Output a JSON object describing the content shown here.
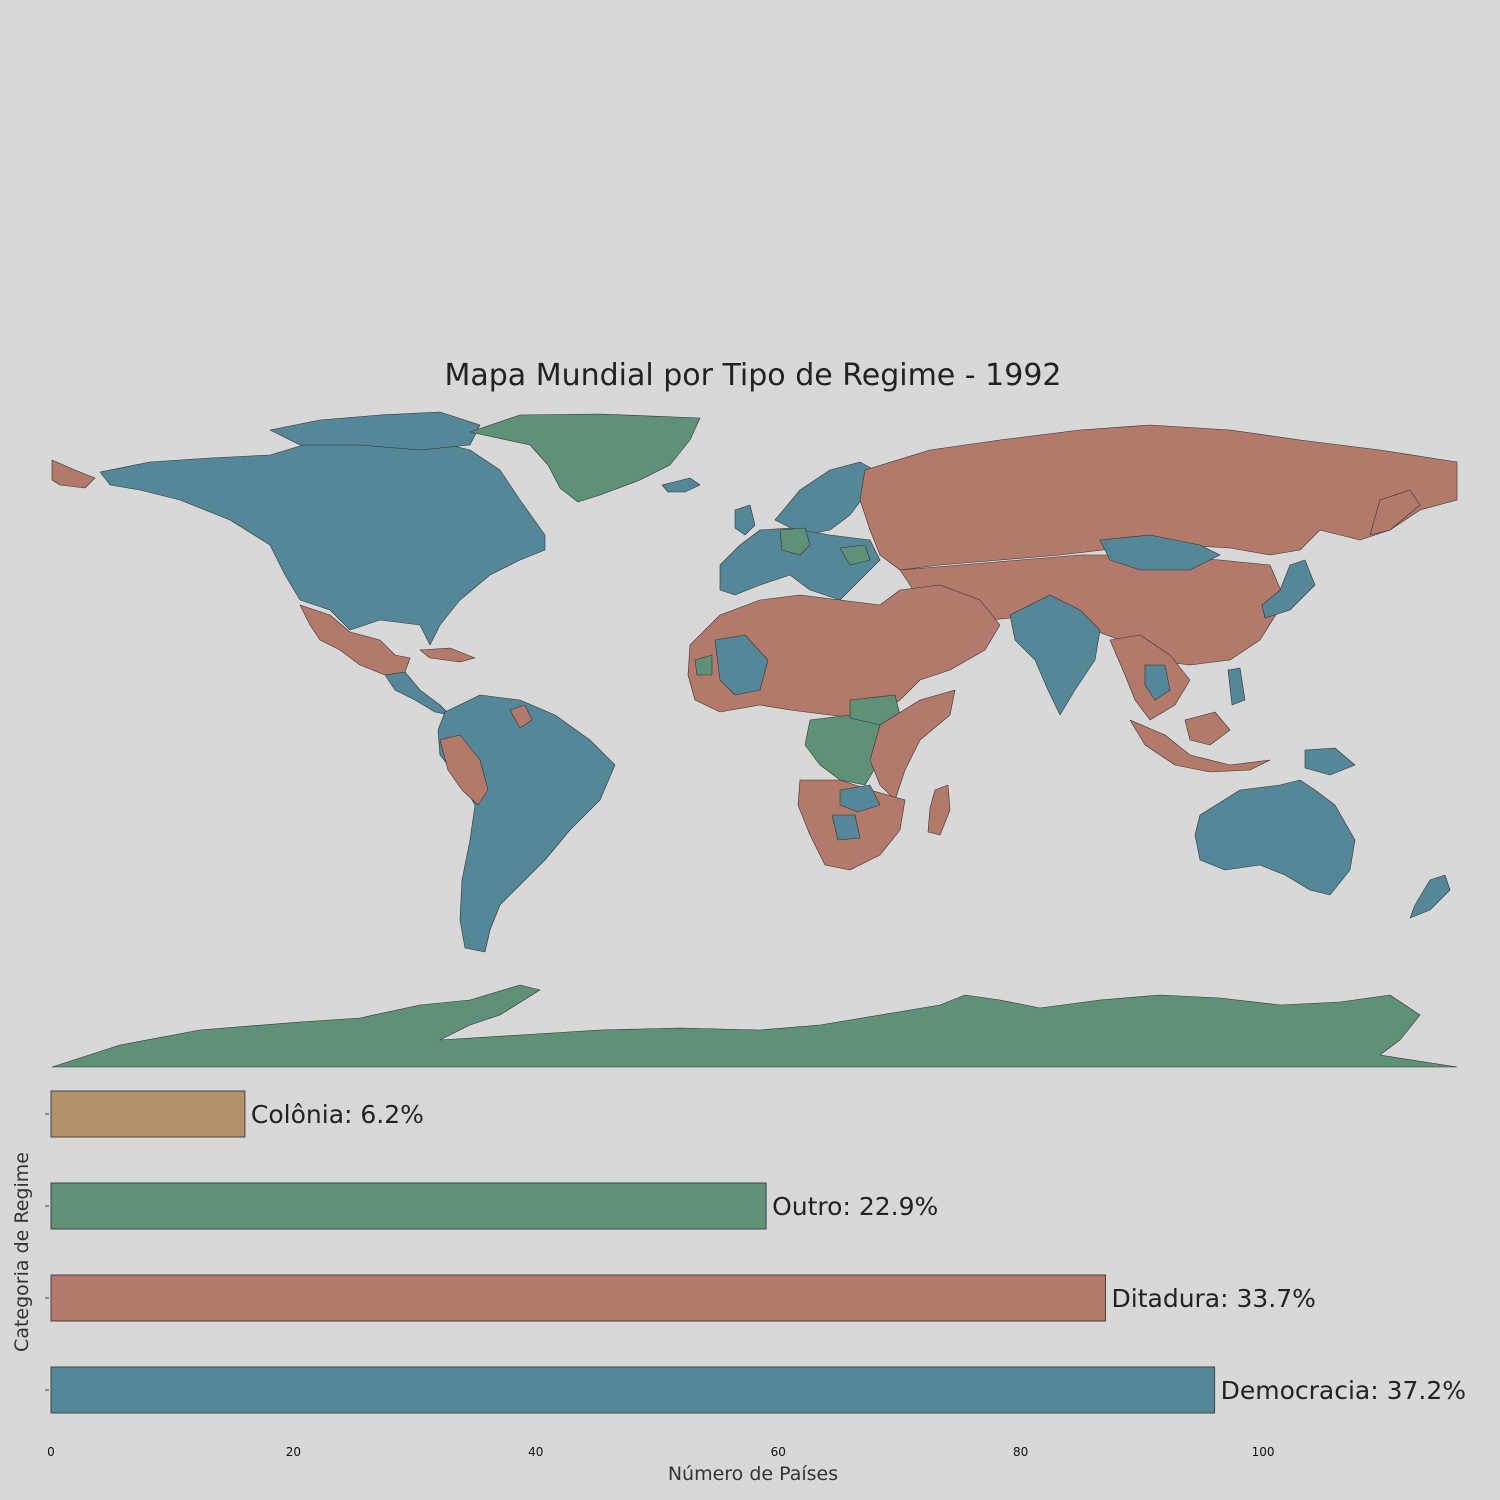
{
  "title": "Mapa Mundial por Tipo de Regime - 1992",
  "colors": {
    "background": "#d8d8d8",
    "democracia": "#548798",
    "ditadura": "#b3796a",
    "outro": "#5e9178",
    "colonia": "#b3926b"
  },
  "chart_data": [
    {
      "type": "map",
      "title": "Mapa Mundial por Tipo de Regime - 1992",
      "legend_categories": [
        "Democracia",
        "Ditadura",
        "Outro",
        "Colônia"
      ],
      "regions": [
        {
          "name": "North America (Canada/USA)",
          "category": "Democracia"
        },
        {
          "name": "Greenland",
          "category": "Outro"
        },
        {
          "name": "Mexico / Central America",
          "category": "Ditadura"
        },
        {
          "name": "South America",
          "category": "Democracia"
        },
        {
          "name": "Peru",
          "category": "Ditadura"
        },
        {
          "name": "Western Europe",
          "category": "Democracia"
        },
        {
          "name": "Germany",
          "category": "Outro"
        },
        {
          "name": "Russia / Central Asia / China",
          "category": "Ditadura"
        },
        {
          "name": "Mongolia",
          "category": "Democracia"
        },
        {
          "name": "India",
          "category": "Democracia"
        },
        {
          "name": "Japan",
          "category": "Democracia"
        },
        {
          "name": "North Africa / Middle East",
          "category": "Ditadura"
        },
        {
          "name": "Central Africa (Zaire/Sudan)",
          "category": "Outro"
        },
        {
          "name": "Mali",
          "category": "Democracia"
        },
        {
          "name": "Southern Africa",
          "category": "Ditadura"
        },
        {
          "name": "Indonesia",
          "category": "Ditadura"
        },
        {
          "name": "Australia / New Zealand / PNG",
          "category": "Democracia"
        },
        {
          "name": "Antarctica",
          "category": "Outro"
        }
      ]
    },
    {
      "type": "bar",
      "orientation": "horizontal",
      "categories": [
        "Colônia",
        "Outro",
        "Ditadura",
        "Democracia"
      ],
      "values": [
        16,
        59,
        87,
        96
      ],
      "percent_labels": [
        "Colônia: 6.2%",
        "Outro: 22.9%",
        "Ditadura: 33.7%",
        "Democracia: 37.2%"
      ],
      "xlabel": "Número de Países",
      "ylabel": "Categoria de Regime",
      "xlim": [
        0,
        116
      ],
      "xticks": [
        0,
        20,
        40,
        60,
        80,
        100
      ],
      "grid": false
    }
  ]
}
